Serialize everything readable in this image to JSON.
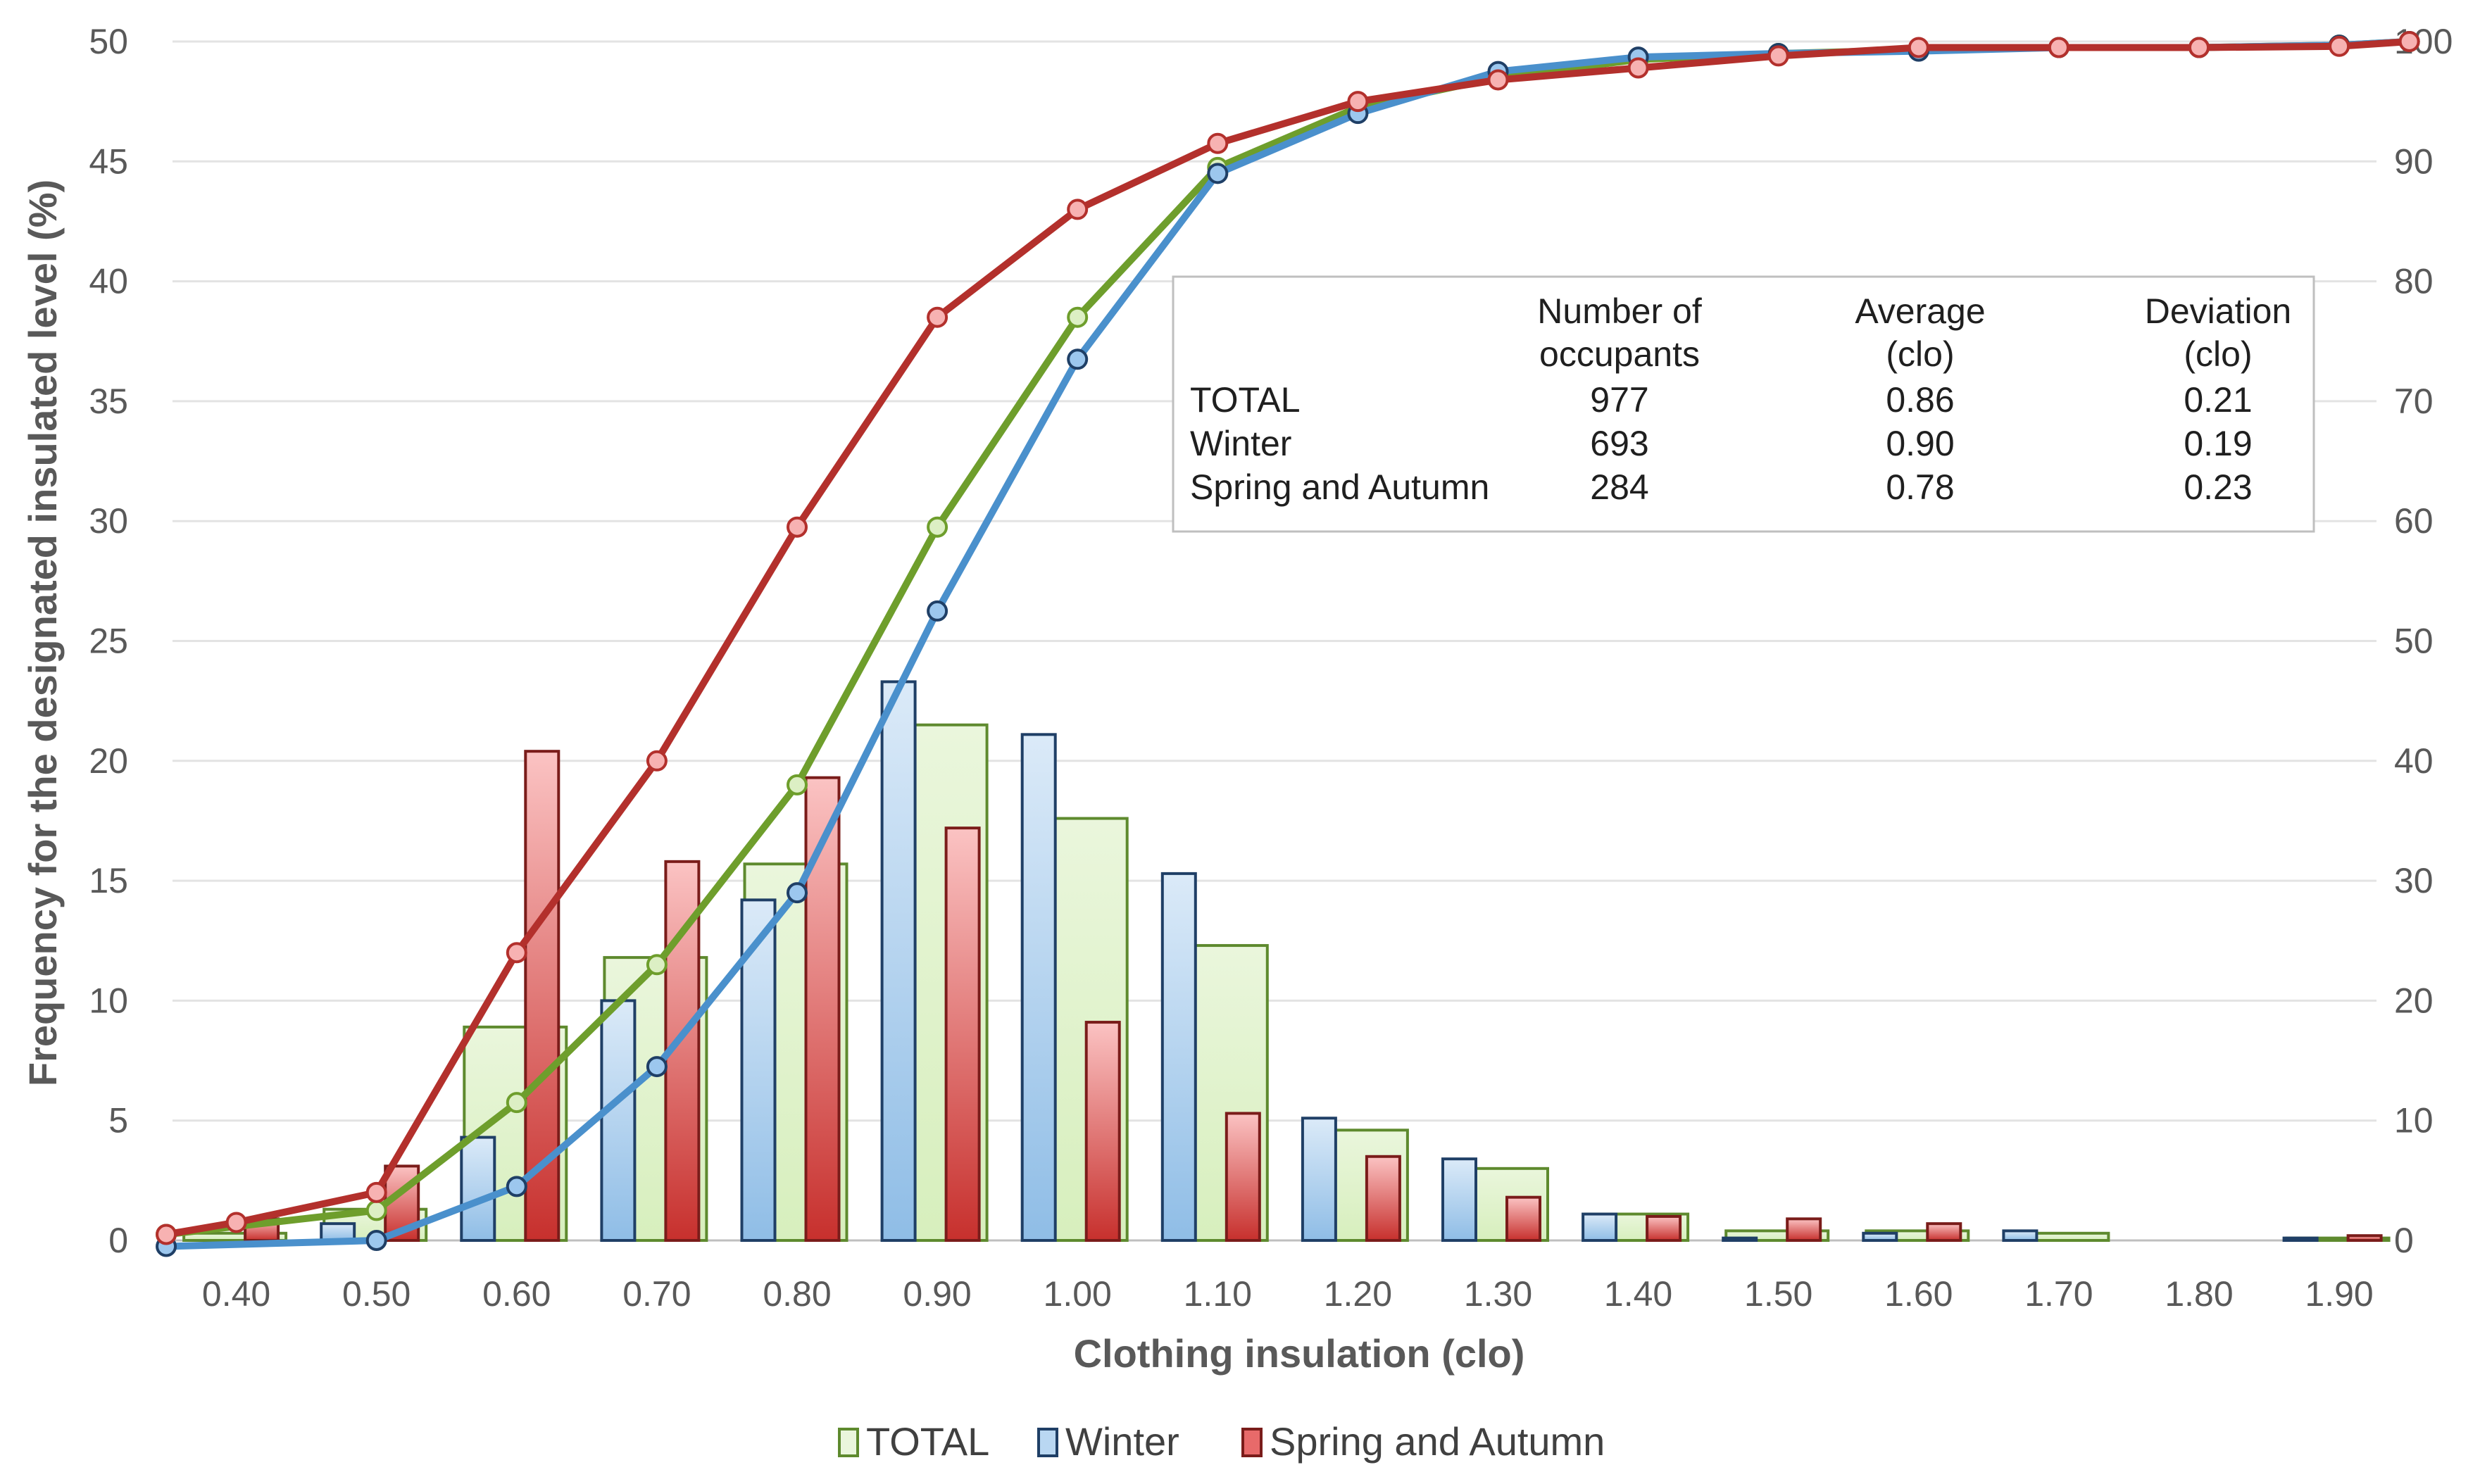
{
  "chart_data": {
    "type": "bar+line",
    "xlabel": "Clothing insulation (clo)",
    "ylabel": "Frequency for the designated insulated level (%)",
    "ylim": [
      0,
      50
    ],
    "y_ticks": [
      0,
      5,
      10,
      15,
      20,
      25,
      30,
      35,
      40,
      45,
      50
    ],
    "y2lim": [
      0,
      100
    ],
    "y2_ticks": [
      0,
      10,
      20,
      30,
      40,
      50,
      60,
      70,
      80,
      90,
      100
    ],
    "grid": true,
    "legend_position": "bottom",
    "categories": [
      "0.40",
      "0.50",
      "0.60",
      "0.70",
      "0.80",
      "0.90",
      "1.00",
      "1.10",
      "1.20",
      "1.30",
      "1.40",
      "1.50",
      "1.60",
      "1.70",
      "1.80",
      "1.90"
    ],
    "bar_series": [
      {
        "name": "TOTAL",
        "color": "#70a040",
        "values": [
          0.3,
          1.3,
          8.9,
          11.8,
          15.7,
          21.5,
          17.6,
          12.3,
          4.6,
          3.0,
          1.1,
          0.4,
          0.4,
          0.3,
          0.0,
          0.1
        ]
      },
      {
        "name": "Winter",
        "color": "#5b9bd5",
        "values": [
          0.0,
          0.7,
          4.3,
          10.0,
          14.2,
          23.3,
          21.1,
          15.3,
          5.1,
          3.4,
          1.1,
          0.1,
          0.3,
          0.4,
          0.0,
          0.1
        ]
      },
      {
        "name": "Spring and Autumn",
        "color": "#e05555",
        "values": [
          0.9,
          3.1,
          20.4,
          15.8,
          19.3,
          17.2,
          9.1,
          5.3,
          3.5,
          1.8,
          1.0,
          0.9,
          0.7,
          0.0,
          0.0,
          0.2
        ]
      }
    ],
    "cumulative_series": [
      {
        "name": "TOTAL",
        "color": "#6e9e2c",
        "x": [
          0.35,
          0.5,
          0.6,
          0.7,
          0.8,
          0.9,
          1.0,
          1.1,
          1.2,
          1.3,
          1.4,
          1.5,
          1.6,
          1.7,
          1.8,
          1.9,
          1.95
        ],
        "values": [
          0.5,
          2.5,
          11.5,
          23.0,
          38.0,
          59.5,
          77.0,
          89.5,
          94.5,
          97.0,
          98.5,
          99.0,
          99.3,
          99.5,
          99.5,
          99.7,
          100
        ]
      },
      {
        "name": "Winter",
        "color": "#4a90cc",
        "x": [
          0.35,
          0.5,
          0.6,
          0.7,
          0.8,
          0.9,
          1.0,
          1.1,
          1.2,
          1.3,
          1.4,
          1.5,
          1.6,
          1.7,
          1.8,
          1.9,
          1.95
        ],
        "values": [
          -0.5,
          0.0,
          4.5,
          14.5,
          29.0,
          52.5,
          73.5,
          89.0,
          94.0,
          97.5,
          98.7,
          99.0,
          99.2,
          99.5,
          99.5,
          99.7,
          100
        ]
      },
      {
        "name": "Spring and Autumn",
        "color": "#b3302c",
        "x": [
          0.35,
          0.4,
          0.5,
          0.6,
          0.7,
          0.8,
          0.9,
          1.0,
          1.1,
          1.2,
          1.3,
          1.4,
          1.5,
          1.6,
          1.7,
          1.8,
          1.9,
          1.95
        ],
        "values": [
          0.5,
          1.5,
          4.0,
          24.0,
          40.0,
          59.5,
          77.0,
          86.0,
          91.5,
          95.0,
          96.8,
          97.8,
          98.8,
          99.5,
          99.5,
          99.5,
          99.6,
          100
        ]
      }
    ],
    "legend": [
      "TOTAL",
      "Winter",
      "Spring and Autumn"
    ]
  },
  "summary_table": {
    "headers": [
      {
        "line1": "",
        "line2": ""
      },
      {
        "line1": "Number of",
        "line2": "occupants"
      },
      {
        "line1": "Average",
        "line2": "(clo)"
      },
      {
        "line1": "Deviation",
        "line2": "(clo)"
      }
    ],
    "rows": [
      {
        "label": "TOTAL",
        "occupants": "977",
        "average": "0.86",
        "deviation": "0.21"
      },
      {
        "label": "Winter",
        "occupants": "693",
        "average": "0.90",
        "deviation": "0.19"
      },
      {
        "label": "Spring and Autumn",
        "occupants": "284",
        "average": "0.78",
        "deviation": "0.23"
      }
    ]
  }
}
